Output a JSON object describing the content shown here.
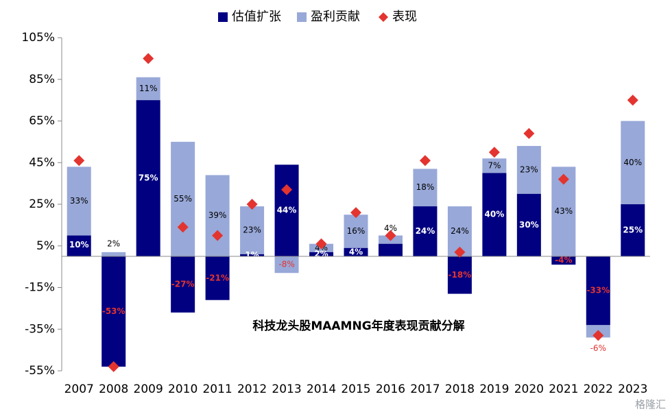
{
  "chart_data": {
    "type": "bar",
    "title": "科技龙头股MAAMNG年度表现贡献分解",
    "categories": [
      "2007",
      "2008",
      "2009",
      "2010",
      "2011",
      "2012",
      "2013",
      "2014",
      "2015",
      "2016",
      "2017",
      "2018",
      "2019",
      "2020",
      "2021",
      "2022",
      "2023"
    ],
    "ylim": [
      -55,
      105
    ],
    "yticks": [
      "105%",
      "85%",
      "65%",
      "45%",
      "25%",
      "5%",
      "-15%",
      "-35%",
      "-55%"
    ],
    "ytick_values": [
      105,
      85,
      65,
      45,
      25,
      5,
      -15,
      -35,
      -55
    ],
    "legend_position": "top-center",
    "colors": {
      "valuation": "#000080",
      "earnings": "#98a8d8",
      "performance": "#e3342f"
    },
    "series": [
      {
        "name": "估值扩张",
        "kind": "bar",
        "values": [
          10,
          -53,
          75,
          -27,
          -21,
          1,
          44,
          2,
          4,
          6,
          24,
          -18,
          40,
          30,
          -4,
          -33,
          25
        ],
        "labels": [
          "10%",
          "-53%",
          "75%",
          "-27%",
          "-21%",
          "1%",
          "44%",
          "2%",
          "4%",
          "",
          "24%",
          "-18%",
          "40%",
          "30%",
          "-4%",
          "-33%",
          "25%"
        ]
      },
      {
        "name": "盈利贡献",
        "kind": "bar",
        "values": [
          33,
          2,
          11,
          55,
          39,
          23,
          -8,
          4,
          16,
          4,
          18,
          24,
          7,
          23,
          43,
          -6,
          40
        ],
        "labels": [
          "33%",
          "2%",
          "11%",
          "55%",
          "39%",
          "23%",
          "-8%",
          "4%",
          "16%",
          "4%",
          "18%",
          "24%",
          "7%",
          "23%",
          "43%",
          "-6%",
          "40%"
        ]
      },
      {
        "name": "表现",
        "kind": "marker",
        "values": [
          46,
          -53,
          95,
          14,
          10,
          25,
          32,
          6,
          21,
          10,
          46,
          2,
          50,
          59,
          37,
          -38,
          75
        ]
      }
    ]
  },
  "watermark": "格隆汇"
}
